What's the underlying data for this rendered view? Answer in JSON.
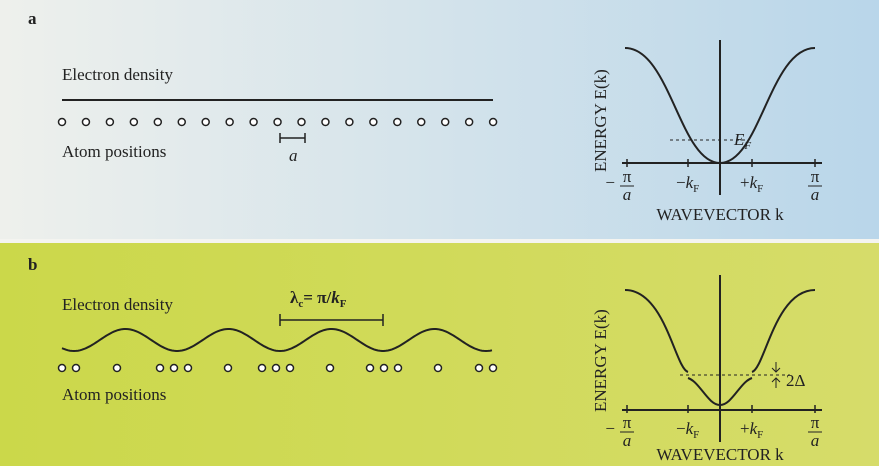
{
  "panels": [
    {
      "label": "a",
      "density_label": "Electron density",
      "atoms_label": "Atom positions",
      "spacing_label": "a",
      "energy_label": "ENERGY E(k)",
      "fermi_symbol": "E",
      "fermi_sub": "F",
      "ticks": [
        {
          "sign": "−",
          "num": "π",
          "den": "a"
        },
        {
          "sign": "−",
          "sym": "k",
          "sub": "F"
        },
        {
          "sign": "+",
          "sym": "k",
          "sub": "F"
        },
        {
          "num": "π",
          "den": "a"
        }
      ],
      "x_label": "WAVEVECTOR k"
    },
    {
      "label": "b",
      "density_label": "Electron density",
      "atoms_label": "Atom positions",
      "wavelength_label": {
        "sym": "λ",
        "sub": "c",
        "rest": "= π/",
        "k": "k",
        "ksub": "F"
      },
      "gap_label": "2Δ",
      "energy_label": "ENERGY E(k)",
      "ticks": [
        {
          "sign": "−",
          "num": "π",
          "den": "a"
        },
        {
          "sign": "−",
          "sym": "k",
          "sub": "F"
        },
        {
          "sign": "+",
          "sym": "k",
          "sub": "F"
        },
        {
          "num": "π",
          "den": "a"
        }
      ],
      "x_label": "WAVEVECTOR k"
    }
  ]
}
